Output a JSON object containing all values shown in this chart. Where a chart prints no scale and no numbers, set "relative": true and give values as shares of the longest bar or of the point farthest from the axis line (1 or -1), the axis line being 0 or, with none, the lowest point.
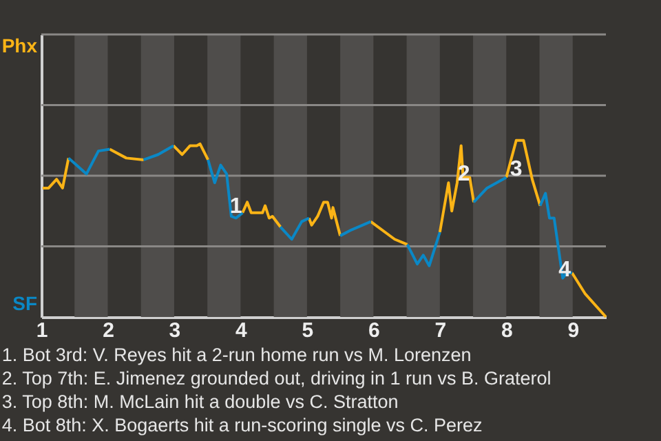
{
  "chart_data": {
    "type": "line",
    "relative": true,
    "x": [
      1.02,
      1.11,
      1.23,
      1.32,
      1.41,
      1.5,
      1.68,
      1.86,
      2.03,
      2.28,
      2.54,
      2.76,
      2.99,
      3.12,
      3.24,
      3.34,
      3.39,
      3.51,
      3.61,
      3.7,
      3.79,
      3.86,
      3.93,
      4.03,
      4.1,
      4.16,
      4.33,
      4.37,
      4.43,
      4.48,
      4.6,
      4.77,
      4.92,
      5.03,
      5.07,
      5.16,
      5.25,
      5.31,
      5.37,
      5.39,
      5.5,
      5.65,
      5.96,
      6.32,
      6.51,
      6.66,
      6.75,
      6.84,
      7,
      7.13,
      7.18,
      7.26,
      7.32,
      7.35,
      7.45,
      7.51,
      7.71,
      8,
      8.15,
      8.26,
      8.39,
      8.51,
      8.59,
      8.65,
      8.72,
      8.85,
      8.91,
      8.99,
      9.19,
      9.5
    ],
    "series": [
      {
        "color": "#fbb416",
        "values": [
          0.73,
          0.73,
          0.78,
          0.73,
          0.9,
          null,
          null,
          null,
          0.95,
          0.9,
          0.89,
          null,
          0.97,
          0.92,
          0.97,
          0.97,
          0.98,
          0.89,
          null,
          null,
          null,
          null,
          null,
          0.59,
          0.65,
          0.59,
          0.59,
          0.63,
          0.56,
          0.57,
          0.51,
          null,
          null,
          0.56,
          0.52,
          0.57,
          0.65,
          0.65,
          0.56,
          0.62,
          0.46,
          null,
          0.54,
          0.44,
          0.41,
          null,
          null,
          null,
          0.48,
          0.76,
          0.6,
          0.76,
          0.97,
          0.79,
          0.79,
          0.65,
          null,
          0.79,
          1,
          1,
          0.78,
          0.63,
          null,
          null,
          null,
          null,
          null,
          0.25,
          0.13,
          0
        ]
      },
      {
        "color": "#0a88c6",
        "values": [
          null,
          null,
          null,
          null,
          0.9,
          0.87,
          0.81,
          0.94,
          0.95,
          null,
          0.89,
          0.92,
          0.97,
          null,
          null,
          null,
          null,
          0.89,
          0.76,
          0.86,
          0.81,
          0.57,
          0.56,
          0.59,
          null,
          null,
          null,
          null,
          null,
          null,
          0.51,
          0.44,
          0.54,
          0.56,
          null,
          null,
          null,
          null,
          null,
          null,
          0.46,
          0.49,
          0.54,
          null,
          0.41,
          0.3,
          0.35,
          0.29,
          0.48,
          null,
          null,
          null,
          null,
          null,
          null,
          0.65,
          0.73,
          0.79,
          null,
          null,
          null,
          0.63,
          0.7,
          0.56,
          0.56,
          0.22,
          0.25,
          0.25,
          null,
          null
        ]
      }
    ],
    "xlim": [
      1,
      9.5
    ],
    "xticks": [
      1,
      2,
      3,
      4,
      5,
      6,
      7,
      8,
      9
    ],
    "ref_lines": [
      {
        "axis": "y",
        "value": 0.4,
        "color": "#8a8886"
      },
      {
        "axis": "y",
        "value": 0.8,
        "color": "#8a8886"
      },
      {
        "axis": "y",
        "value": 1.2,
        "color": "#8a8886"
      },
      {
        "axis": "y",
        "value": 1.6,
        "color": "#8a8886"
      }
    ],
    "bands": [
      {
        "axis": "x",
        "from": 1.5,
        "to": 2,
        "color": "#4f4d4b"
      },
      {
        "axis": "x",
        "from": 2.5,
        "to": 3,
        "color": "#4f4d4b"
      },
      {
        "axis": "x",
        "from": 3.5,
        "to": 4,
        "color": "#4f4d4b"
      },
      {
        "axis": "x",
        "from": 4.5,
        "to": 5,
        "color": "#4f4d4b"
      },
      {
        "axis": "x",
        "from": 5.5,
        "to": 6,
        "color": "#4f4d4b"
      },
      {
        "axis": "x",
        "from": 6.5,
        "to": 7,
        "color": "#4f4d4b"
      },
      {
        "axis": "x",
        "from": 7.5,
        "to": 8,
        "color": "#4f4d4b"
      },
      {
        "axis": "x",
        "from": 8.5,
        "to": 9,
        "color": "#4f4d4b"
      }
    ],
    "annotations": [
      {
        "text": "1",
        "x": 3.93,
        "y": 0.63
      },
      {
        "text": "2",
        "x": 7.36,
        "y": 0.81
      },
      {
        "text": "3",
        "x": 8.15,
        "y": 0.84
      },
      {
        "text": "4",
        "x": 8.88,
        "y": 0.27
      },
      "Phx",
      "SF",
      "1. Bot 3rd: V. Reyes hit a 2-run home run vs M. Lorenzen",
      "2. Top 7th: E. Jimenez grounded out, driving in 1 run vs B. Graterol",
      "3. Top 8th: M. McLain hit a double vs C. Stratton",
      "4. Bot 8th: X. Bogaerts hit a run-scoring single vs C. Perez"
    ]
  }
}
